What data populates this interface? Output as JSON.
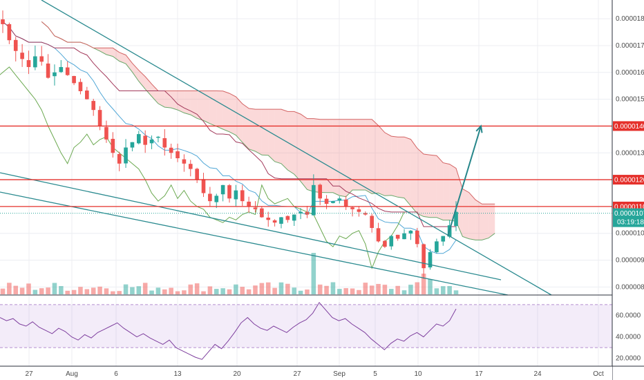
{
  "chart_data": [
    {
      "type": "candlestick",
      "price_scale": {
        "min": 7.7e-06,
        "max": 1.87e-05,
        "ticks": [
          "0.00000800",
          "0.00000900",
          "0.00001000",
          "0.00001100",
          "0.00001200",
          "0.00001300",
          "0.00001400",
          "0.00001500",
          "0.00001600",
          "0.00001700",
          "0.00001800"
        ]
      },
      "date_axis": {
        "labels": [
          "27",
          "Aug",
          "6",
          "13",
          "20",
          "27",
          "Sep",
          "5",
          "10",
          "17",
          "24",
          "Oct"
        ]
      },
      "horizontal_levels": [
        {
          "value": 1.4e-05,
          "label": "0.00001400",
          "color": "#e5302b"
        },
        {
          "value": 1.2e-05,
          "label": "0.00001200",
          "color": "#e5302b"
        },
        {
          "value": 1.1e-05,
          "label": "0.00001100",
          "color": "#e5302b"
        }
      ],
      "last_price": {
        "value": 1.075e-05,
        "label": "0.00001075",
        "countdown": "03:19:18",
        "color": "#26a69a"
      },
      "projection_arrow": {
        "from": 9.9e-06,
        "to": 1.4e-05,
        "color": "#26868a"
      },
      "closes": [
        1.78e-05,
        1.72e-05,
        1.68e-05,
        1.65e-05,
        1.62e-05,
        1.66e-05,
        1.64e-05,
        1.58e-05,
        1.6e-05,
        1.62e-05,
        1.59e-05,
        1.56e-05,
        1.53e-05,
        1.5e-05,
        1.46e-05,
        1.4e-05,
        1.35e-05,
        1.3e-05,
        1.26e-05,
        1.32e-05,
        1.34e-05,
        1.37e-05,
        1.33e-05,
        1.35e-05,
        1.36e-05,
        1.32e-05,
        1.3e-05,
        1.28e-05,
        1.26e-05,
        1.24e-05,
        1.2e-05,
        1.15e-05,
        1.12e-05,
        1.14e-05,
        1.18e-05,
        1.13e-05,
        1.16e-05,
        1.12e-05,
        1.1e-05,
        1.09e-05,
        1.06e-05,
        1.05e-05,
        1.04e-05,
        1.06e-05,
        1.05e-05,
        1.07e-05,
        1.08e-05,
        1.07e-05,
        1.18e-05,
        1.13e-05,
        1.11e-05,
        1.12e-05,
        1.13e-05,
        1.1e-05,
        1.09e-05,
        1.08e-05,
        1.07e-05,
        1.02e-05,
        9.7e-06,
        9.5e-06,
        9.9e-06,
        9.8e-06,
        1e-05,
        1.01e-05,
        9.6e-06,
        8.7e-06,
        9.3e-06,
        9.7e-06,
        9.9e-06,
        1.03e-05,
        1.08e-05
      ]
    },
    {
      "type": "line",
      "indicator": "RSI",
      "y_ticks": [
        "60.0000",
        "40.0000",
        "20.0000"
      ],
      "ylim": [
        14,
        77
      ],
      "band": [
        30,
        70
      ],
      "color": "#7e3f9e",
      "values": [
        58,
        55,
        57,
        52,
        50,
        54,
        49,
        46,
        43,
        48,
        45,
        40,
        37,
        42,
        39,
        44,
        47,
        50,
        53,
        48,
        44,
        40,
        43,
        39,
        36,
        33,
        37,
        30,
        27,
        24,
        21,
        19,
        26,
        33,
        29,
        36,
        44,
        53,
        58,
        52,
        48,
        46,
        50,
        47,
        44,
        49,
        53,
        56,
        62,
        72,
        65,
        58,
        55,
        57,
        52,
        48,
        44,
        38,
        33,
        28,
        34,
        38,
        36,
        41,
        44,
        40,
        46,
        52,
        50,
        55,
        66
      ]
    }
  ]
}
